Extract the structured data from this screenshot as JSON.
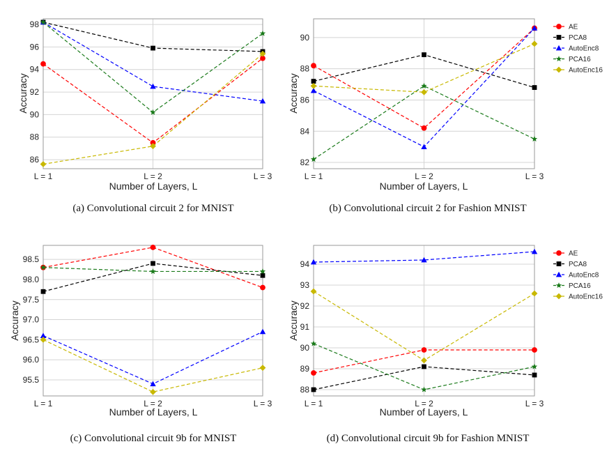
{
  "figure": {
    "series_colors": {
      "AE": "#ff0000",
      "PCA8": "#000000",
      "AutoEnc8": "#0000ff",
      "PCA16": "#1a7a1a",
      "AutoEnc16": "#c8b800"
    },
    "series_markers": {
      "AE": "circle",
      "PCA8": "square",
      "AutoEnc8": "triangle",
      "PCA16": "star",
      "AutoEnc16": "diamond"
    }
  },
  "chart_data": [
    {
      "type": "line",
      "caption": "(a) Convolutional circuit 2 for MNIST",
      "xlabel": "Number of Layers, L",
      "ylabel": "Accuracy",
      "categories": [
        "L = 1",
        "L = 2",
        "L = 3"
      ],
      "ylim": [
        85.2,
        98.5
      ],
      "yticks": [
        "86",
        "88",
        "90",
        "92",
        "94",
        "96",
        "98"
      ],
      "legend": null,
      "series": [
        {
          "name": "AE",
          "values": [
            94.5,
            87.5,
            95.0
          ]
        },
        {
          "name": "PCA8",
          "values": [
            98.2,
            95.9,
            95.6
          ]
        },
        {
          "name": "AutoEnc8",
          "values": [
            98.2,
            92.5,
            91.2
          ]
        },
        {
          "name": "PCA16",
          "values": [
            98.2,
            90.2,
            97.2
          ]
        },
        {
          "name": "AutoEnc16",
          "values": [
            85.6,
            87.2,
            95.4
          ]
        }
      ]
    },
    {
      "type": "line",
      "caption": "(b) Convolutional circuit 2 for Fashion MNIST",
      "xlabel": "Number of Layers, L",
      "ylabel": "Accuracy",
      "categories": [
        "L = 1",
        "L = 2",
        "L = 3"
      ],
      "ylim": [
        81.6,
        91.2
      ],
      "yticks": [
        "82",
        "84",
        "86",
        "88",
        "90"
      ],
      "legend": "outside-right",
      "series": [
        {
          "name": "AE",
          "values": [
            88.2,
            84.2,
            90.6
          ]
        },
        {
          "name": "PCA8",
          "values": [
            87.2,
            88.9,
            86.8
          ]
        },
        {
          "name": "AutoEnc8",
          "values": [
            86.6,
            83.0,
            90.6
          ]
        },
        {
          "name": "PCA16",
          "values": [
            82.2,
            86.9,
            83.5
          ]
        },
        {
          "name": "AutoEnc16",
          "values": [
            86.9,
            86.5,
            89.6
          ]
        }
      ]
    },
    {
      "type": "line",
      "caption": "(c) Convolutional circuit 9b for MNIST",
      "xlabel": "Number of Layers, L",
      "ylabel": "Accuracy",
      "categories": [
        "L = 1",
        "L = 2",
        "L = 3"
      ],
      "ylim": [
        95.1,
        98.85
      ],
      "yticks": [
        "95.5",
        "96.0",
        "96.5",
        "97.0",
        "97.5",
        "98.0",
        "98.5"
      ],
      "legend": null,
      "series": [
        {
          "name": "AE",
          "values": [
            98.3,
            98.8,
            97.8
          ]
        },
        {
          "name": "PCA8",
          "values": [
            97.7,
            98.4,
            98.1
          ]
        },
        {
          "name": "AutoEnc8",
          "values": [
            96.6,
            95.4,
            96.7
          ]
        },
        {
          "name": "PCA16",
          "values": [
            98.3,
            98.2,
            98.2
          ]
        },
        {
          "name": "AutoEnc16",
          "values": [
            96.5,
            95.2,
            95.8
          ]
        }
      ]
    },
    {
      "type": "line",
      "caption": "(d) Convolutional circuit 9b for Fashion MNIST",
      "xlabel": "Number of Layers, L",
      "ylabel": "Accuracy",
      "categories": [
        "L = 1",
        "L = 2",
        "L = 3"
      ],
      "ylim": [
        87.7,
        94.9
      ],
      "yticks": [
        "88",
        "89",
        "90",
        "91",
        "92",
        "93",
        "94"
      ],
      "legend": "outside-right",
      "series": [
        {
          "name": "AE",
          "values": [
            88.8,
            89.9,
            89.9
          ]
        },
        {
          "name": "PCA8",
          "values": [
            88.0,
            89.1,
            88.7
          ]
        },
        {
          "name": "AutoEnc8",
          "values": [
            94.1,
            94.2,
            94.6
          ]
        },
        {
          "name": "PCA16",
          "values": [
            90.2,
            88.0,
            89.1
          ]
        },
        {
          "name": "AutoEnc16",
          "values": [
            92.7,
            89.4,
            92.6
          ]
        }
      ]
    }
  ]
}
